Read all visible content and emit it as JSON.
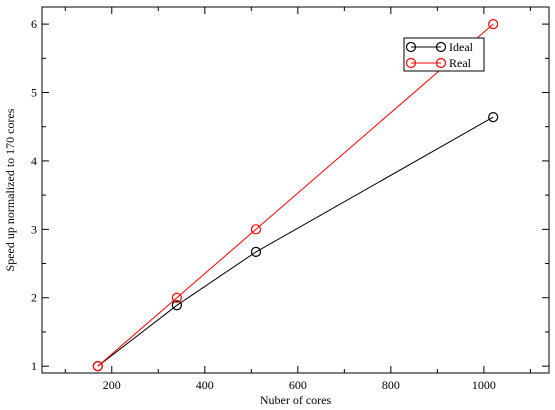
{
  "chart_data": {
    "type": "line",
    "xlabel": "Nuber of cores",
    "ylabel": "Speed up normalized to 170 cores",
    "xlim": [
      50,
      1140
    ],
    "ylim": [
      0.9,
      6.25
    ],
    "xticks": [
      200,
      400,
      600,
      800,
      1000
    ],
    "yticks": [
      1,
      2,
      3,
      4,
      5,
      6
    ],
    "grid": false,
    "legend_position": "top-right",
    "series": [
      {
        "name": "Ideal",
        "color": "#000000",
        "marker": "open-circle",
        "x": [
          170,
          340,
          510,
          1020
        ],
        "y": [
          1.0,
          1.89,
          2.67,
          4.64
        ]
      },
      {
        "name": "Real",
        "color": "#ff0000",
        "marker": "open-circle",
        "x": [
          170,
          340,
          510,
          1020
        ],
        "y": [
          1.0,
          2.0,
          3.0,
          6.0
        ]
      }
    ]
  }
}
